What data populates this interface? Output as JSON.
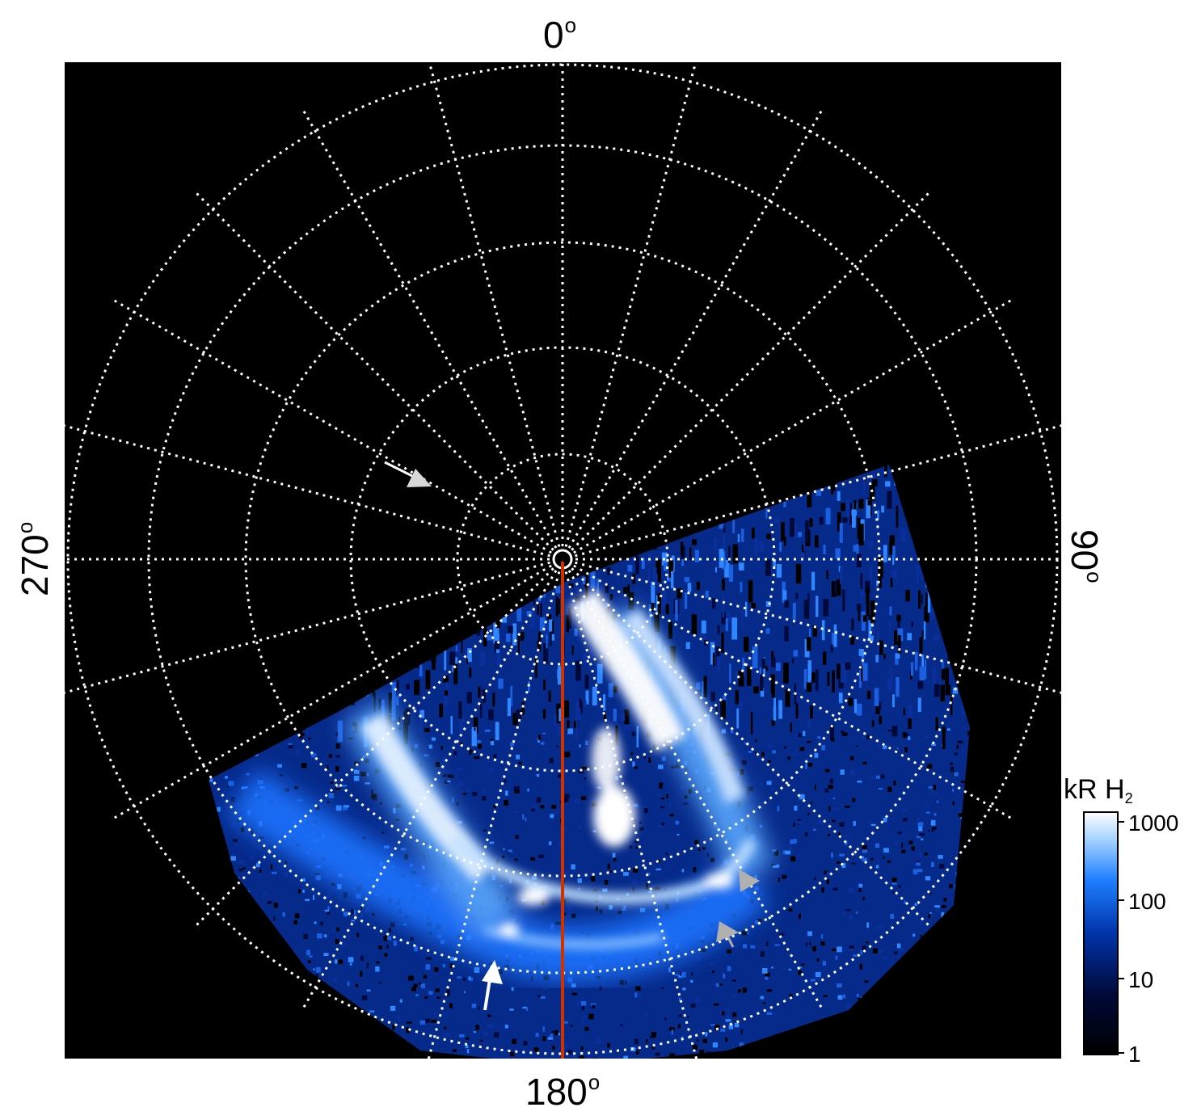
{
  "axis_labels": {
    "top": "0",
    "right": "90",
    "bottom": "180",
    "left": "270",
    "degree_symbol": "o"
  },
  "colorbar": {
    "title_main": "kR H",
    "title_subscript": "2",
    "scale": "log",
    "ticks": [
      "1000",
      "100",
      "10",
      "1"
    ],
    "colors": [
      "#000000",
      "#000a3a",
      "#0033aa",
      "#1e7fff",
      "#9fd0ff",
      "#ffffff"
    ]
  },
  "colors": {
    "background": "#000000",
    "grid": "#ffffff",
    "meridian_line": "#cc3300",
    "arrow_white": "#ffffff",
    "arrow_gray": "#b0b0b0"
  },
  "icons": [
    "white-arrow-icon",
    "gray-arrow-icon"
  ]
}
